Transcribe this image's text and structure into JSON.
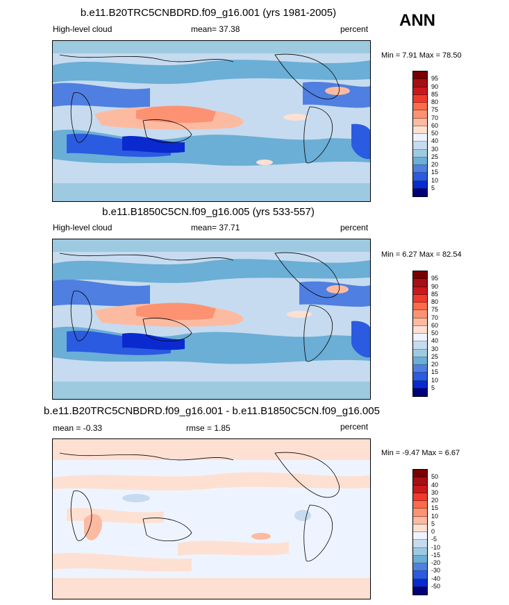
{
  "season": "ANN",
  "panels": [
    {
      "title": "b.e11.B20TRC5CNBDRD.f09_g16.001 (yrs 1981-2005)",
      "left_label": "High-level cloud",
      "center_label": "mean=  37.38",
      "right_label": "percent",
      "minmax": "Min =   7.91 Max =  78.50",
      "colorbar_labels": [
        "95",
        "90",
        "85",
        "80",
        "75",
        "70",
        "60",
        "50",
        "40",
        "30",
        "25",
        "20",
        "15",
        "10",
        "5"
      ],
      "colorbar_colors": [
        "#7a0000",
        "#a50f15",
        "#cb181d",
        "#ef3b2c",
        "#fb6a4a",
        "#fc9272",
        "#fcbba1",
        "#fee0d2",
        "#eef4ff",
        "#c6dbef",
        "#9ecae1",
        "#6baed6",
        "#4f7fe0",
        "#2b5be0",
        "#0a2ad0",
        "#00007a"
      ]
    },
    {
      "title": "b.e11.B1850C5CN.f09_g16.005 (yrs 533-557)",
      "left_label": "High-level cloud",
      "center_label": "mean=  37.71",
      "right_label": "percent",
      "minmax": "Min =   6.27 Max =  82.54",
      "colorbar_labels": [
        "95",
        "90",
        "85",
        "80",
        "75",
        "70",
        "60",
        "50",
        "40",
        "30",
        "25",
        "20",
        "15",
        "10",
        "5"
      ],
      "colorbar_colors": [
        "#7a0000",
        "#a50f15",
        "#cb181d",
        "#ef3b2c",
        "#fb6a4a",
        "#fc9272",
        "#fcbba1",
        "#fee0d2",
        "#eef4ff",
        "#c6dbef",
        "#9ecae1",
        "#6baed6",
        "#4f7fe0",
        "#2b5be0",
        "#0a2ad0",
        "#00007a"
      ]
    },
    {
      "title": "b.e11.B20TRC5CNBDRD.f09_g16.001 - b.e11.B1850C5CN.f09_g16.005",
      "left_label": "mean =  -0.33",
      "center_label": "rmse =   1.85",
      "right_label": "percent",
      "minmax": "Min =  -9.47 Max =   6.67",
      "colorbar_labels": [
        "50",
        "40",
        "30",
        "20",
        "15",
        "10",
        "5",
        "0",
        "-5",
        "-10",
        "-15",
        "-20",
        "-30",
        "-40",
        "-50"
      ],
      "colorbar_colors": [
        "#7a0000",
        "#a50f15",
        "#cb181d",
        "#ef3b2c",
        "#fb6a4a",
        "#fc9272",
        "#fcbba1",
        "#fee0d2",
        "#eef4ff",
        "#c6dbef",
        "#9ecae1",
        "#6baed6",
        "#4f7fe0",
        "#2b5be0",
        "#0a2ad0",
        "#00007a"
      ]
    }
  ]
}
